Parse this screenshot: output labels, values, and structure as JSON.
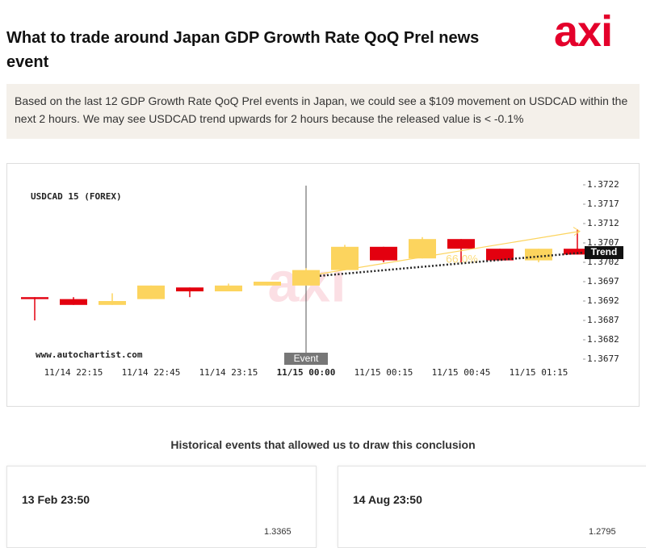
{
  "header": {
    "title": "What to trade around Japan GDP Growth Rate QoQ Prel news event",
    "logo": "axi"
  },
  "summary": "Based on the last 12 GDP Growth Rate QoQ Prel events in Japan, we could see a $109 movement on USDCAD within the next 2 hours. We may see USDCAD trend upwards for 2 hours because the released value is < -0.1%",
  "chart_data": {
    "type": "candlestick",
    "title": "USDCAD 15 (FOREX)",
    "source": "www.autochartist.com",
    "categories": [
      null,
      "11/14 22:15",
      null,
      "11/14 22:45",
      null,
      "11/14 23:15",
      null,
      "11/15 00:00",
      null,
      "11/15 00:15",
      null,
      "11/15 00:45",
      null,
      "11/15 01:15",
      null
    ],
    "open": [
      1.3693,
      1.36925,
      1.3691,
      1.36925,
      1.36955,
      1.36945,
      1.3696,
      1.3696,
      1.37,
      1.3706,
      1.3703,
      1.3708,
      1.37055,
      1.37025,
      1.37055
    ],
    "high": [
      1.3693,
      1.3693,
      1.3694,
      1.3696,
      1.36955,
      1.36965,
      1.3697,
      1.37005,
      1.37065,
      1.3706,
      1.37085,
      1.3708,
      1.37055,
      1.37055,
      1.37105
    ],
    "low": [
      1.3687,
      1.3691,
      1.3691,
      1.36925,
      1.3693,
      1.36945,
      1.3696,
      1.3696,
      1.37,
      1.3702,
      1.3703,
      1.3702,
      1.37025,
      1.3702,
      1.3704
    ],
    "close": [
      1.36925,
      1.3691,
      1.3692,
      1.3696,
      1.36945,
      1.3696,
      1.3697,
      1.37,
      1.3706,
      1.37025,
      1.3708,
      1.37055,
      1.37025,
      1.37055,
      1.3704
    ],
    "up_color": "#fcd45e",
    "down_color": "#e3000f",
    "ylim": [
      1.3677,
      1.3722
    ],
    "yticks": [
      1.3677,
      1.3682,
      1.3687,
      1.3692,
      1.3697,
      1.3702,
      1.3707,
      1.3712,
      1.3717,
      1.3722
    ],
    "event_label": "Event",
    "trend": {
      "label": "Trend",
      "start": 1.36985,
      "end": 1.37045
    },
    "projection": {
      "label": "66.0%",
      "start": 1.3699,
      "end": 1.371
    }
  },
  "historical": {
    "title": "Historical events that allowed us to draw this conclusion",
    "cards": [
      {
        "date": "13 Feb 23:50",
        "tick": "1.3365"
      },
      {
        "date": "14 Aug 23:50",
        "tick": "1.2795"
      }
    ]
  }
}
